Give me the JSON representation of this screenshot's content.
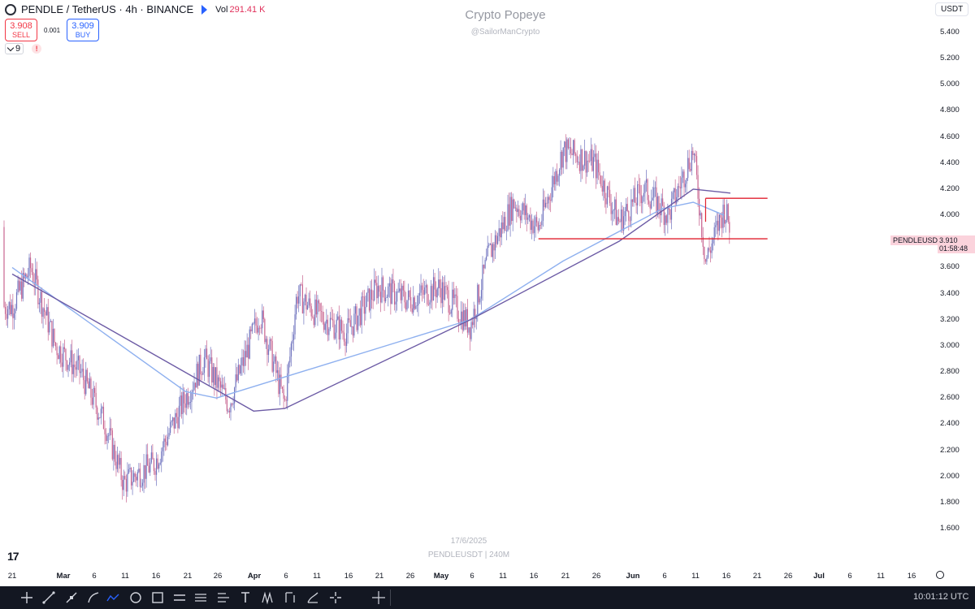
{
  "header": {
    "symbol": "PENDLE / TetherUS · 4h · BINANCE",
    "vol_label": "Vol",
    "vol_value": "291.41 K"
  },
  "trade": {
    "sell_price": "3.908",
    "sell_label": "SELL",
    "spread": "0.001",
    "buy_price": "3.909",
    "buy_label": "BUY"
  },
  "indicators": {
    "count": "9",
    "warning": "!"
  },
  "watermark": {
    "title": "Crypto Popeye",
    "handle": "@SailorManCrypto",
    "date": "17/6/2025",
    "source": "PENDLEUSDT | 240M"
  },
  "currency": "USDT",
  "price_label": {
    "symbol": "PENDLEUSDT",
    "price": "3.910",
    "countdown": "01:58:48"
  },
  "clock": "10:01:12 UTC",
  "colors": {
    "candle": "#7b7fc4",
    "candle_up": "#6f73be",
    "candle_down": "#c8638f",
    "ma_fast": "#8eb0ef",
    "ma_slow": "#6c5ba5",
    "level_line": "#e0212f",
    "price_tag": "#fbd3dc"
  },
  "icons": {
    "toolbar": [
      "crosshair-icon",
      "trendline-icon",
      "brush-icon",
      "curve-icon",
      "path-icon",
      "ellipse-icon",
      "rectangle-icon",
      "parallel-channel-icon",
      "regression-icon",
      "pitchfork-icon",
      "text-icon",
      "date-range-icon",
      "long-position-icon",
      "pattern-icon",
      "fib-icon"
    ],
    "settings": "gear-icon",
    "measure": "measure-icon"
  },
  "chart_data": {
    "type": "candlestick",
    "title": "PENDLE / TetherUS · 4h · BINANCE",
    "ylim": [
      1.6,
      5.5
    ],
    "y_ticks": [
      "5.400",
      "5.200",
      "5.000",
      "4.800",
      "4.600",
      "4.400",
      "4.200",
      "4.000",
      "3.800",
      "3.600",
      "3.400",
      "3.200",
      "3.000",
      "2.800",
      "2.600",
      "2.400",
      "2.200",
      "2.000",
      "1.800",
      "1.600"
    ],
    "x_ticks": [
      "21",
      "Mar",
      "6",
      "11",
      "16",
      "21",
      "26",
      "Apr",
      "6",
      "11",
      "16",
      "21",
      "26",
      "May",
      "6",
      "11",
      "16",
      "21",
      "26",
      "Jun",
      "6",
      "11",
      "16",
      "21",
      "26",
      "Jul",
      "6",
      "11",
      "16"
    ],
    "approx_closes": [
      {
        "date": "21 Feb",
        "price": 3.3
      },
      {
        "date": "24 Feb",
        "price": 3.6
      },
      {
        "date": "28 Feb",
        "price": 3.0
      },
      {
        "date": "4 Mar",
        "price": 2.8
      },
      {
        "date": "8 Mar",
        "price": 2.4
      },
      {
        "date": "11 Mar",
        "price": 1.95
      },
      {
        "date": "16 Mar",
        "price": 2.1
      },
      {
        "date": "21 Mar",
        "price": 2.6
      },
      {
        "date": "24 Mar",
        "price": 2.9
      },
      {
        "date": "28 Mar",
        "price": 2.55
      },
      {
        "date": "2 Apr",
        "price": 3.25
      },
      {
        "date": "6 Apr",
        "price": 2.55
      },
      {
        "date": "8 Apr",
        "price": 3.4
      },
      {
        "date": "11 Apr",
        "price": 3.25
      },
      {
        "date": "16 Apr",
        "price": 3.1
      },
      {
        "date": "21 Apr",
        "price": 3.45
      },
      {
        "date": "26 Apr",
        "price": 3.35
      },
      {
        "date": "1 May",
        "price": 3.45
      },
      {
        "date": "6 May",
        "price": 3.15
      },
      {
        "date": "9 May",
        "price": 3.7
      },
      {
        "date": "13 May",
        "price": 4.1
      },
      {
        "date": "17 May",
        "price": 3.9
      },
      {
        "date": "21 May",
        "price": 4.5
      },
      {
        "date": "26 May",
        "price": 4.4
      },
      {
        "date": "30 May",
        "price": 3.95
      },
      {
        "date": "3 Jun",
        "price": 4.2
      },
      {
        "date": "7 Jun",
        "price": 4.0
      },
      {
        "date": "11 Jun",
        "price": 4.5
      },
      {
        "date": "13 Jun",
        "price": 3.65
      },
      {
        "date": "16 Jun",
        "price": 4.05
      },
      {
        "date": "17 Jun",
        "price": 3.91
      }
    ],
    "moving_averages": [
      {
        "color": "#8eb0ef",
        "approx": [
          {
            "date": "21 Feb",
            "price": 3.6
          },
          {
            "date": "21 Mar",
            "price": 2.65
          },
          {
            "date": "26 Mar",
            "price": 2.6
          },
          {
            "date": "6 May",
            "price": 3.2
          },
          {
            "date": "21 May",
            "price": 3.65
          },
          {
            "date": "6 Jun",
            "price": 4.05
          },
          {
            "date": "11 Jun",
            "price": 4.1
          },
          {
            "date": "16 Jun",
            "price": 4.0
          }
        ]
      },
      {
        "color": "#6c5ba5",
        "approx": [
          {
            "date": "21 Feb",
            "price": 3.55
          },
          {
            "date": "1 Apr",
            "price": 2.5
          },
          {
            "date": "6 Apr",
            "price": 2.52
          },
          {
            "date": "6 May",
            "price": 3.2
          },
          {
            "date": "30 May",
            "price": 3.8
          },
          {
            "date": "11 Jun",
            "price": 4.2
          },
          {
            "date": "17 Jun",
            "price": 4.17
          }
        ]
      }
    ],
    "levels": [
      {
        "price": 3.82,
        "from": "17 May",
        "to": "23 Jun"
      },
      {
        "price": 4.13,
        "from": "13 Jun",
        "to": "23 Jun"
      }
    ],
    "last_price": 3.91
  }
}
